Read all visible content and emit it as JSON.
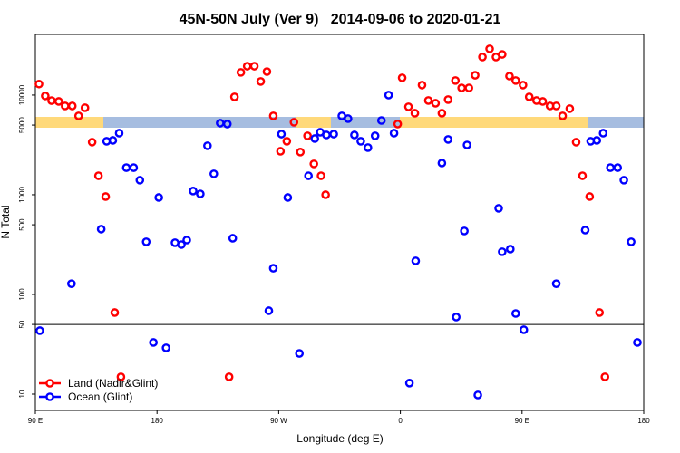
{
  "chart_data": {
    "type": "scatter",
    "title": "45N-50N July (Ver 9)   2014-09-06 to 2020-01-21",
    "x_label": "Longitude (deg E)",
    "y_label": "N Total",
    "log_y": true,
    "xlim": [
      90,
      540
    ],
    "xticks": [
      {
        "value": 90,
        "label": "90 E"
      },
      {
        "value": 180,
        "label": "180"
      },
      {
        "value": 270,
        "label": "90 W"
      },
      {
        "value": 360,
        "label": "0"
      },
      {
        "value": 450,
        "label": "90 E"
      },
      {
        "value": 540,
        "label": "180"
      }
    ],
    "ylim": [
      6.86,
      40600
    ],
    "yticks": [
      10,
      50,
      100,
      500,
      1000,
      5000,
      10000
    ],
    "hline": 50,
    "legend": "bottom-left",
    "series": [
      {
        "name": "Land (Nadir&Glint)",
        "color": "#ff0000",
        "x": [
          92.7,
          97.3,
          102,
          107.3,
          112,
          117.3,
          122,
          126.7,
          132,
          136.7,
          142,
          148.7,
          153.3,
          233.3,
          237.3,
          242,
          246.7,
          252,
          256.7,
          261.3,
          266,
          271.3,
          276,
          281.3,
          286,
          291.3,
          296,
          301.3,
          304.7,
          358,
          361.3,
          366,
          370.7,
          376,
          380.7,
          386,
          390.7,
          395.3,
          400.7,
          405.3,
          410.7,
          415.3,
          420.7,
          426,
          430.7,
          435.3,
          440.7,
          445.3,
          450.7,
          455.3,
          460.7,
          465.3,
          470.7,
          475.3,
          480,
          485.3,
          490,
          494.7,
          500,
          507.3,
          511.3
        ],
        "values": [
          12900,
          9800,
          8800,
          8630,
          7780,
          7780,
          6180,
          7460,
          3370,
          1550,
          959,
          65.8,
          14.9,
          14.9,
          9590,
          16900,
          19500,
          19500,
          13700,
          17200,
          6180,
          2730,
          3440,
          5340,
          2680,
          3900,
          2040,
          1550,
          1000,
          5120,
          14900,
          7620,
          6580,
          12600,
          8820,
          8280,
          6580,
          9010,
          14000,
          11800,
          11800,
          15800,
          24100,
          29100,
          24100,
          25600,
          15500,
          14000,
          12600,
          9590,
          8820,
          8630,
          7780,
          7780,
          6180,
          7310,
          3370,
          1550,
          959,
          65.8,
          14.9
        ]
      },
      {
        "name": "Ocean (Glint)",
        "color": "#0000ff",
        "x": [
          93.3,
          116.7,
          138.7,
          142.7,
          147.3,
          152,
          157.3,
          162.7,
          167.3,
          172,
          177.3,
          181.3,
          186.7,
          193.3,
          198,
          202,
          206.7,
          212,
          217.3,
          222,
          226.7,
          232,
          236,
          262.7,
          266,
          272,
          276.7,
          285.3,
          292,
          296.7,
          300.7,
          305.3,
          310.7,
          316.7,
          321.3,
          326,
          330.7,
          336,
          341.3,
          346,
          351.3,
          355.3,
          366.7,
          371.3,
          390.7,
          395.3,
          401.3,
          407.3,
          409.3,
          417.3,
          432.7,
          435.3,
          441.3,
          445.3,
          451.3,
          475.3,
          496.7,
          500.7,
          505.3,
          510,
          515.3,
          520.7,
          525.3,
          530.7,
          535.3
        ],
        "values": [
          43.3,
          128,
          452,
          3440,
          3510,
          4150,
          1870,
          1870,
          1400,
          337,
          33,
          939,
          29.1,
          330,
          316,
          351,
          1090,
          1020,
          3100,
          1620,
          5230,
          5120,
          366,
          68.6,
          183,
          4060,
          939,
          25.6,
          1550,
          3660,
          4240,
          3980,
          4060,
          6180,
          5800,
          3980,
          3440,
          2970,
          3900,
          5560,
          10000,
          4150,
          12.9,
          217,
          2080,
          3590,
          59.3,
          433,
          3160,
          9.8,
          731,
          268,
          285,
          64.4,
          44.2,
          128,
          442,
          3440,
          3510,
          4150,
          1870,
          1870,
          1400,
          337,
          33
        ]
      }
    ]
  }
}
